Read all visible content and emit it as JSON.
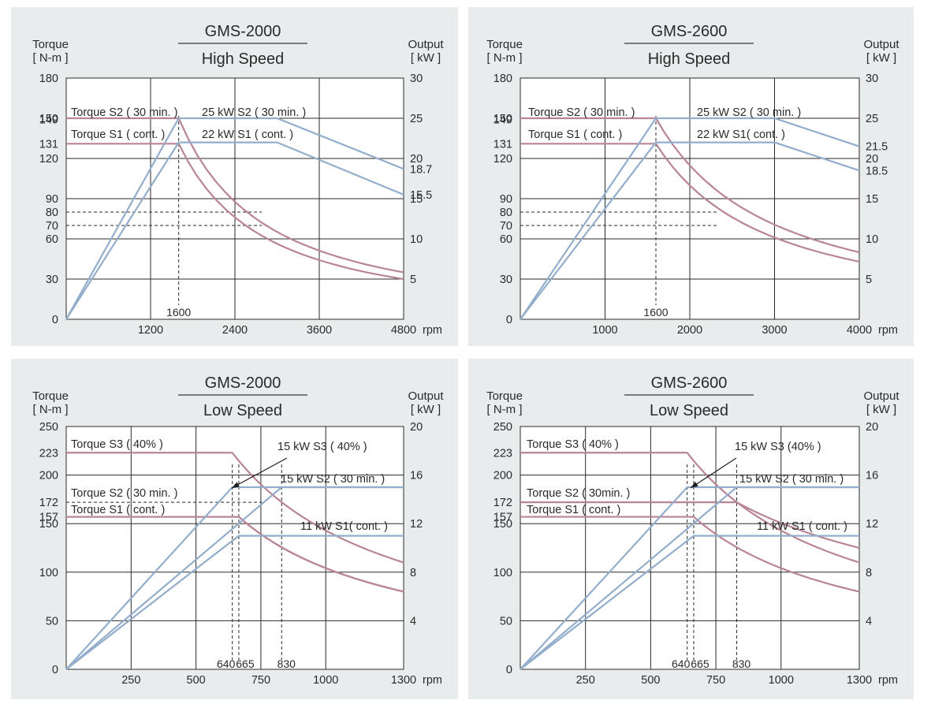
{
  "chart_data": [
    {
      "type": "line",
      "model": "GMS-2000",
      "subtitle": "High Speed",
      "ylabel_left": [
        "Torque",
        "[ N-m ]"
      ],
      "ylabel_right": [
        "Output",
        "[ kW ]"
      ],
      "x_unit": "rpm",
      "xlim": [
        0,
        4800
      ],
      "ylim_left": [
        0,
        180
      ],
      "ylim_right": [
        0,
        30
      ],
      "x_ticks": [
        "1200",
        "2400",
        "3600",
        "4800"
      ],
      "x_tick_values": [
        1200,
        2400,
        3600,
        4800
      ],
      "y_left_ticks": [
        "0",
        "30",
        "60",
        "70",
        "80",
        "90",
        "120",
        "131",
        "149",
        "150",
        "180"
      ],
      "y_left_tick_values": [
        0,
        30,
        60,
        70,
        80,
        90,
        120,
        131,
        149,
        150,
        180
      ],
      "y_right_ticks": [
        "5",
        "10",
        "15",
        "15.5",
        "18.7",
        "20",
        "25",
        "30"
      ],
      "y_right_tick_values": [
        5,
        10,
        15,
        15.5,
        18.7,
        20,
        25,
        30
      ],
      "vertical_markers": [
        {
          "label": "1600",
          "x": 1600
        }
      ],
      "grid_x": [
        1200,
        2400,
        3600
      ],
      "grid_y_left": [
        30,
        60,
        90,
        120,
        150
      ],
      "dashed_y_left": [
        70,
        80
      ],
      "series": [
        {
          "name": "Torque S2 ( 30 min. )",
          "kind": "torque",
          "points": [
            [
              0,
              150
            ],
            [
              1600,
              150
            ],
            [
              4800,
              35
            ]
          ]
        },
        {
          "name": "Torque S1 ( cont. )",
          "kind": "torque",
          "points": [
            [
              0,
              131
            ],
            [
              1600,
              131
            ],
            [
              4800,
              30
            ]
          ]
        },
        {
          "name": "25 kW S2 ( 30 min. )",
          "kind": "power",
          "points": [
            [
              0,
              0
            ],
            [
              1600,
              25
            ],
            [
              3000,
              25
            ],
            [
              4800,
              18.7
            ]
          ]
        },
        {
          "name": "22 kW S1 ( cont. )",
          "kind": "power",
          "points": [
            [
              0,
              0
            ],
            [
              1600,
              22
            ],
            [
              3000,
              22
            ],
            [
              4800,
              15.5
            ]
          ]
        }
      ]
    },
    {
      "type": "line",
      "model": "GMS-2600",
      "subtitle": "High Speed",
      "ylabel_left": [
        "Torque",
        "[ N-m ]"
      ],
      "ylabel_right": [
        "Output",
        "[ kW ]"
      ],
      "x_unit": "rpm",
      "xlim": [
        0,
        4000
      ],
      "ylim_left": [
        0,
        180
      ],
      "ylim_right": [
        0,
        30
      ],
      "x_ticks": [
        "1000",
        "2000",
        "3000",
        "4000"
      ],
      "x_tick_values": [
        1000,
        2000,
        3000,
        4000
      ],
      "y_left_ticks": [
        "0",
        "30",
        "60",
        "70",
        "80",
        "90",
        "120",
        "131",
        "149",
        "150",
        "180"
      ],
      "y_left_tick_values": [
        0,
        30,
        60,
        70,
        80,
        90,
        120,
        131,
        149,
        150,
        180
      ],
      "y_right_ticks": [
        "5",
        "10",
        "15",
        "18.5",
        "20",
        "21.5",
        "25",
        "30"
      ],
      "y_right_tick_values": [
        5,
        10,
        15,
        18.5,
        20,
        21.5,
        25,
        30
      ],
      "vertical_markers": [
        {
          "label": "1600",
          "x": 1600
        }
      ],
      "grid_x": [
        1000,
        2000,
        3000
      ],
      "grid_y_left": [
        30,
        60,
        90,
        120,
        150
      ],
      "dashed_y_left": [
        70,
        80
      ],
      "series": [
        {
          "name": "Torque S2 ( 30 min. )",
          "kind": "torque",
          "points": [
            [
              0,
              150
            ],
            [
              1600,
              150
            ],
            [
              4000,
              50
            ]
          ]
        },
        {
          "name": "Torque S1 ( cont. )",
          "kind": "torque",
          "points": [
            [
              0,
              131
            ],
            [
              1600,
              131
            ],
            [
              4000,
              43
            ]
          ]
        },
        {
          "name": "25 kW S2 ( 30 min. )",
          "kind": "power",
          "points": [
            [
              0,
              0
            ],
            [
              1600,
              25
            ],
            [
              3000,
              25
            ],
            [
              4000,
              21.5
            ]
          ]
        },
        {
          "name": "22 kW S1( cont. )",
          "kind": "power",
          "points": [
            [
              0,
              0
            ],
            [
              1600,
              22
            ],
            [
              3000,
              22
            ],
            [
              4000,
              18.5
            ]
          ]
        }
      ]
    },
    {
      "type": "line",
      "model": "GMS-2000",
      "subtitle": "Low Speed",
      "ylabel_left": [
        "Torque",
        "[ N-m ]"
      ],
      "ylabel_right": [
        "Output",
        "[ kW ]"
      ],
      "x_unit": "rpm",
      "xlim": [
        0,
        1300
      ],
      "ylim_left": [
        0,
        250
      ],
      "ylim_right": [
        0,
        20
      ],
      "x_ticks": [
        "250",
        "500",
        "750",
        "1000",
        "1300"
      ],
      "x_tick_values": [
        250,
        500,
        750,
        1000,
        1300
      ],
      "y_left_ticks": [
        "0",
        "50",
        "100",
        "150",
        "157",
        "172",
        "200",
        "223",
        "250"
      ],
      "y_left_tick_values": [
        0,
        50,
        100,
        150,
        157,
        172,
        200,
        223,
        250
      ],
      "y_right_ticks": [
        "4",
        "8",
        "12",
        "16",
        "20"
      ],
      "y_right_tick_values": [
        4,
        8,
        12,
        16,
        20
      ],
      "vertical_markers": [
        {
          "label": "640",
          "x": 640
        },
        {
          "label": "665",
          "x": 665
        },
        {
          "label": "830",
          "x": 830
        }
      ],
      "grid_x": [
        250,
        500,
        750,
        1000
      ],
      "grid_y_left": [
        50,
        100,
        150,
        200
      ],
      "dashed_y_left": [
        172
      ],
      "series": [
        {
          "name": "Torque S3 ( 40% )",
          "kind": "torque",
          "points": [
            [
              0,
              223
            ],
            [
              640,
              223
            ],
            [
              1300,
              110
            ]
          ]
        },
        {
          "name": "Torque S2 ( 30 min. )",
          "kind": "torque",
          "points": [
            [
              0,
              157
            ],
            [
              665,
              157
            ],
            [
              1300,
              80
            ]
          ]
        },
        {
          "name": "Torque S1 ( cont. )",
          "kind": "torque",
          "points": [
            [
              0,
              157
            ],
            [
              665,
              157
            ],
            [
              1300,
              80
            ]
          ]
        },
        {
          "name": "15 kW S3 ( 40% )",
          "kind": "power",
          "points": [
            [
              0,
              0
            ],
            [
              640,
              15
            ],
            [
              1300,
              15
            ]
          ]
        },
        {
          "name": "15 kW S2 ( 30 min. )",
          "kind": "power",
          "points": [
            [
              0,
              0
            ],
            [
              830,
              15
            ],
            [
              1300,
              15
            ]
          ]
        },
        {
          "name": "11 kW S1( cont. )",
          "kind": "power",
          "points": [
            [
              0,
              0
            ],
            [
              665,
              11
            ],
            [
              1300,
              11
            ]
          ]
        }
      ]
    },
    {
      "type": "line",
      "model": "GMS-2600",
      "subtitle": "Low Speed",
      "ylabel_left": [
        "Torque",
        "[ N-m ]"
      ],
      "ylabel_right": [
        "Output",
        "[ kW ]"
      ],
      "x_unit": "rpm",
      "xlim": [
        0,
        1300
      ],
      "ylim_left": [
        0,
        250
      ],
      "ylim_right": [
        0,
        20
      ],
      "x_ticks": [
        "250",
        "500",
        "750",
        "1000",
        "1300"
      ],
      "x_tick_values": [
        250,
        500,
        750,
        1000,
        1300
      ],
      "y_left_ticks": [
        "0",
        "50",
        "100",
        "150",
        "157",
        "172",
        "200",
        "223",
        "250"
      ],
      "y_left_tick_values": [
        0,
        50,
        100,
        150,
        157,
        172,
        200,
        223,
        250
      ],
      "y_right_ticks": [
        "4",
        "8",
        "12",
        "16",
        "20"
      ],
      "y_right_tick_values": [
        4,
        8,
        12,
        16,
        20
      ],
      "vertical_markers": [
        {
          "label": "640",
          "x": 640
        },
        {
          "label": "665",
          "x": 665
        },
        {
          "label": "830",
          "x": 830
        }
      ],
      "grid_x": [
        250,
        500,
        750,
        1000
      ],
      "grid_y_left": [
        50,
        100,
        150,
        200
      ],
      "dashed_y_left": [],
      "series": [
        {
          "name": "Torque S3 ( 40% )",
          "kind": "torque",
          "points": [
            [
              0,
              223
            ],
            [
              640,
              223
            ],
            [
              1300,
              110
            ]
          ]
        },
        {
          "name": "Torque S2 ( 30min. )",
          "kind": "torque",
          "points": [
            [
              0,
              172
            ],
            [
              830,
              172
            ],
            [
              1300,
              125
            ]
          ]
        },
        {
          "name": "Torque S1 ( cont. )",
          "kind": "torque",
          "points": [
            [
              0,
              157
            ],
            [
              665,
              157
            ],
            [
              1300,
              80
            ]
          ]
        },
        {
          "name": "15 kW S3 (40% )",
          "kind": "power",
          "points": [
            [
              0,
              0
            ],
            [
              640,
              15
            ],
            [
              1300,
              15
            ]
          ]
        },
        {
          "name": "15 kW S2 ( 30 min. )",
          "kind": "power",
          "points": [
            [
              0,
              0
            ],
            [
              830,
              15
            ],
            [
              1300,
              15
            ]
          ]
        },
        {
          "name": "11 kW S1 ( cont. )",
          "kind": "power",
          "points": [
            [
              0,
              0
            ],
            [
              665,
              11
            ],
            [
              1300,
              11
            ]
          ]
        }
      ]
    }
  ],
  "colors": {
    "panel_bg": "#e9eced",
    "torque": "#b98595",
    "power": "#93aecb",
    "grid": "#2a2a2a",
    "text": "#2a2a2a",
    "rule": "#555555"
  }
}
